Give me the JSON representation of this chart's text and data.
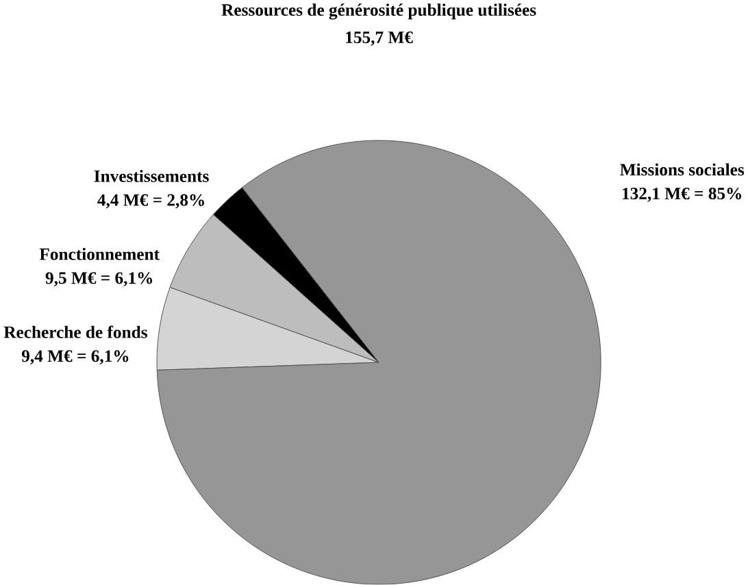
{
  "chart_data": {
    "type": "pie",
    "title": "Ressources de générosité publique utilisées",
    "subtitle": "155,7 M€",
    "categories": [
      "Recherche de fonds",
      "Fonctionnement",
      "Investissements",
      "Missions sociales"
    ],
    "values": [
      9.4,
      9.5,
      4.4,
      132.1
    ],
    "value_labels": [
      "9,4 M€ = 6,1%",
      "9,5 M€ = 6,1%",
      "4,4 M€ = 2,8%",
      "132,1 M€ = 85%"
    ],
    "colors": [
      "#d4d4d4",
      "#bdbdbd",
      "#000000",
      "#969696"
    ]
  }
}
